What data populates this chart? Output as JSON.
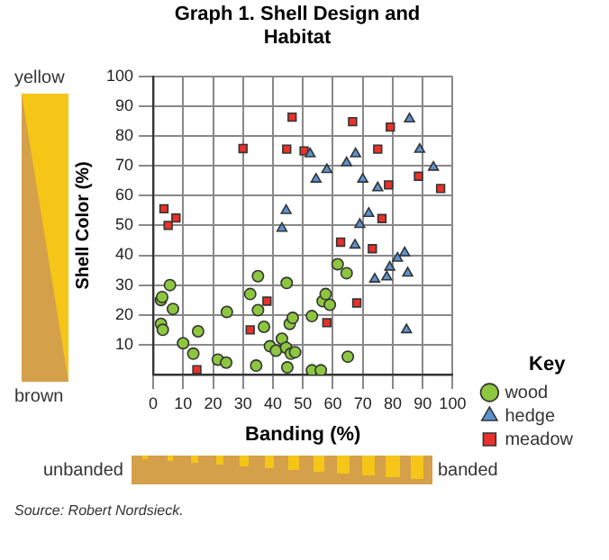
{
  "chart_data": {
    "type": "scatter",
    "title": "Graph 1. Shell Design and Habitat",
    "xlabel": "Banding (%)",
    "ylabel": "Shell Color (%)",
    "legend_title": "Key",
    "legend": "bottom right",
    "grid": true,
    "xlim": [
      0,
      100
    ],
    "xticks": [
      0,
      10,
      20,
      30,
      40,
      50,
      60,
      70,
      80,
      90,
      100
    ],
    "ylim": [
      0,
      100
    ],
    "yticks": [
      10,
      20,
      30,
      40,
      50,
      60,
      70,
      80,
      90,
      100
    ],
    "annotations": [
      "yellow",
      "brown",
      "unbanded",
      "banded",
      "Source: Robert Nordsieck."
    ],
    "series": [
      {
        "name": "wood",
        "color": "#8dc63f",
        "marker": "circle",
        "x": [
          2.6,
          3,
          2.6,
          3.2,
          5.6,
          6.6,
          10,
          13.4,
          15,
          21.6,
          24.4,
          24.6,
          32.4,
          35,
          34.4,
          35,
          37,
          39,
          41,
          43,
          44.6,
          44.8,
          45.6,
          46.6,
          44.4,
          46,
          47.4,
          53,
          53,
          56,
          56.6,
          57.6,
          59,
          61.6,
          64.6,
          65
        ],
        "values": [
          25,
          26,
          17,
          15,
          30,
          22,
          10.5,
          7,
          14.5,
          5,
          4,
          21,
          27,
          33,
          3,
          21.6,
          16,
          9.5,
          8,
          12,
          30.7,
          2.4,
          17,
          19,
          9,
          7,
          7.5,
          19.6,
          1.4,
          1.4,
          24.6,
          27,
          23.4,
          37,
          34,
          6
        ]
      },
      {
        "name": "hedge",
        "color": "#5b93d3",
        "marker": "triangle",
        "x": [
          52.4,
          54.4,
          58,
          64.6,
          67.6,
          70,
          75,
          85.6,
          89,
          93.6,
          44.4,
          43,
          72,
          69,
          67.4,
          74,
          78,
          79,
          81.6,
          84,
          85,
          84.6
        ],
        "values": [
          74,
          65.5,
          68.7,
          71,
          74,
          65.5,
          62.6,
          85.7,
          75.5,
          69.5,
          55,
          49,
          54,
          50.3,
          43.4,
          32,
          32.7,
          36,
          39,
          40.8,
          34,
          15
        ]
      },
      {
        "name": "meadow",
        "color": "#e8312a",
        "marker": "square",
        "x": [
          3.6,
          5,
          7.6,
          14.6,
          30,
          32.4,
          38,
          46.4,
          44.6,
          50.4,
          58,
          62.6,
          66.6,
          68,
          73.2,
          75,
          76.4,
          78.6,
          79.2,
          88.6,
          96
        ],
        "values": [
          55.6,
          50,
          52.5,
          1.6,
          75.8,
          15,
          24.6,
          86.3,
          75.6,
          75,
          17.4,
          44.4,
          84.8,
          24,
          42.2,
          75.6,
          52.3,
          63.6,
          83,
          66.5,
          62.4
        ]
      }
    ]
  }
}
